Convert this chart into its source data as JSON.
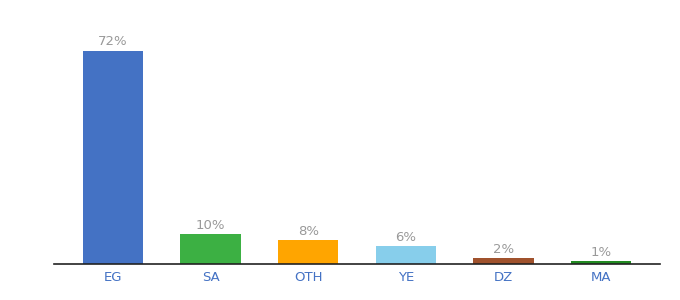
{
  "categories": [
    "EG",
    "SA",
    "OTH",
    "YE",
    "DZ",
    "MA"
  ],
  "values": [
    72,
    10,
    8,
    6,
    2,
    1
  ],
  "bar_colors": [
    "#4472C4",
    "#3CB043",
    "#FFA500",
    "#87CEEB",
    "#A0522D",
    "#228B22"
  ],
  "labels": [
    "72%",
    "10%",
    "8%",
    "6%",
    "2%",
    "1%"
  ],
  "ylim": [
    0,
    82
  ],
  "background_color": "#ffffff",
  "label_color": "#999999",
  "tick_color_x": "#4472C4",
  "label_fontsize": 9.5,
  "tick_fontsize": 9.5,
  "bar_width": 0.62,
  "figsize": [
    6.8,
    3.0
  ],
  "dpi": 100
}
